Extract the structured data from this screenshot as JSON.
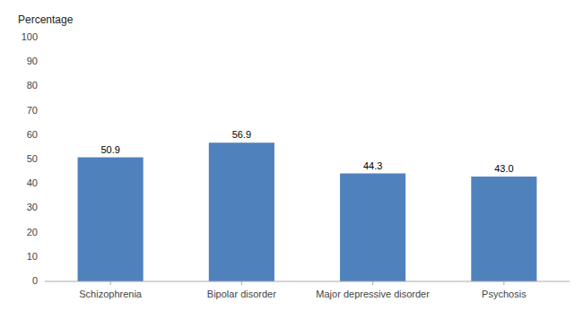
{
  "chart_data": {
    "type": "bar",
    "y_label": "Percentage",
    "categories": [
      "Schizophrenia",
      "Bipolar disorder",
      "Major depressive disorder",
      "Psychosis"
    ],
    "values": [
      50.9,
      56.9,
      44.3,
      43.0
    ],
    "value_labels": [
      "50.9",
      "56.9",
      "44.3",
      "43.0"
    ],
    "color": "#4F81BD",
    "ylim": [
      0,
      100
    ],
    "yticks": [
      0,
      10,
      20,
      30,
      40,
      50,
      60,
      70,
      80,
      90,
      100
    ],
    "grid": false,
    "data_labels": true
  }
}
